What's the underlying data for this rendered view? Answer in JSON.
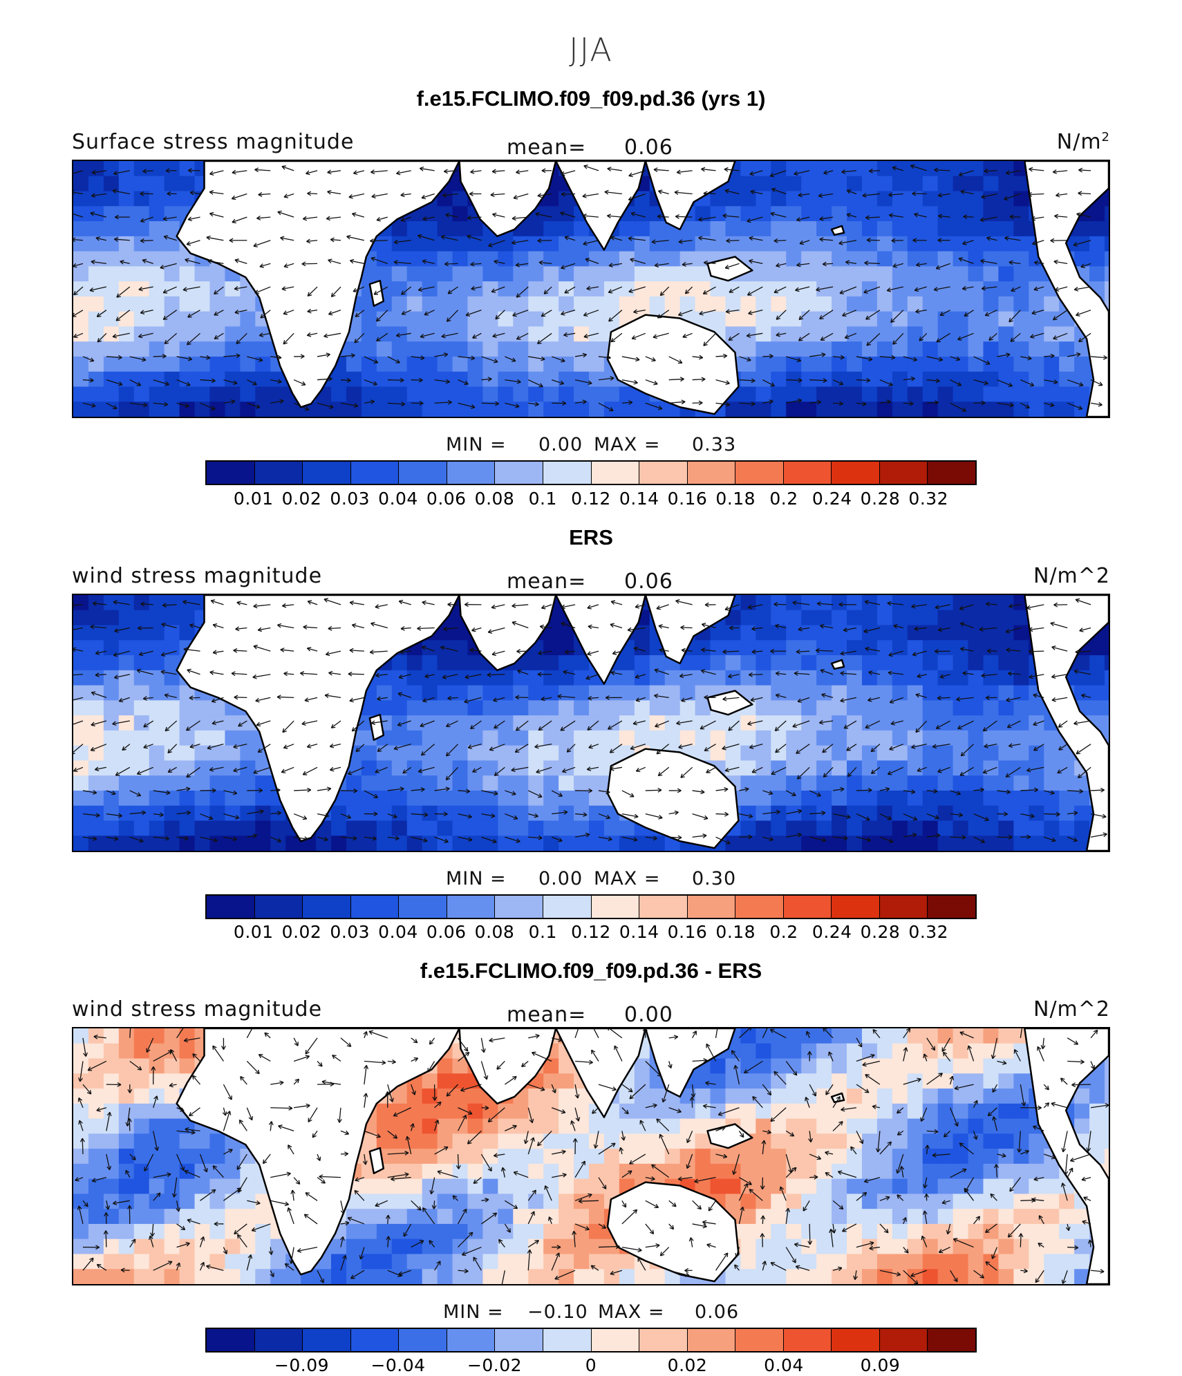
{
  "title": "JJA",
  "colors": {
    "palette": [
      "#08148c",
      "#0a2aa8",
      "#0f40c8",
      "#1f55e0",
      "#3a6fe8",
      "#6690f0",
      "#9db6f4",
      "#cfe0f8",
      "#fde6da",
      "#fbc6ad",
      "#f7a07d",
      "#f47a52",
      "#ee5430",
      "#dc3210",
      "#b01c08",
      "#7a0a04"
    ],
    "land": "#ffffff",
    "coast": "#000000",
    "arrow": "#111111"
  },
  "panels": [
    {
      "title": "f.e15.FCLIMO.f09_f09.pd.36 (yrs 1)",
      "left_label": "Surface stress magnitude",
      "mean_label": "mean=",
      "mean_value": "0.06",
      "units_base": "N/m",
      "units_sup": "2",
      "min_label": "MIN =",
      "min_value": "0.00",
      "max_label": "MAX =",
      "max_value": "0.33",
      "ticks": [
        "0.01",
        "0.02",
        "0.03",
        "0.04",
        "0.06",
        "0.08",
        "0.1",
        "0.12",
        "0.14",
        "0.16",
        "0.18",
        "0.2",
        "0.24",
        "0.28",
        "0.32"
      ]
    },
    {
      "title": "ERS",
      "left_label": "wind stress magnitude",
      "mean_label": "mean=",
      "mean_value": "0.06",
      "units": "N/m^2",
      "min_label": "MIN =",
      "min_value": "0.00",
      "max_label": "MAX =",
      "max_value": "0.30",
      "ticks": [
        "0.01",
        "0.02",
        "0.03",
        "0.04",
        "0.06",
        "0.08",
        "0.1",
        "0.12",
        "0.14",
        "0.16",
        "0.18",
        "0.2",
        "0.24",
        "0.28",
        "0.32"
      ]
    },
    {
      "title": "f.e15.FCLIMO.f09_f09.pd.36 - ERS",
      "left_label": "wind stress magnitude",
      "mean_label": "mean=",
      "mean_value": "0.00",
      "units": "N/m^2",
      "min_label": "MIN =",
      "min_value": "−0.10",
      "max_label": "MAX =",
      "max_value": "0.06",
      "ticks": [
        "−0.09",
        "−0.04",
        "−0.02",
        "0",
        "0.02",
        "0.04",
        "0.09"
      ]
    }
  ]
}
